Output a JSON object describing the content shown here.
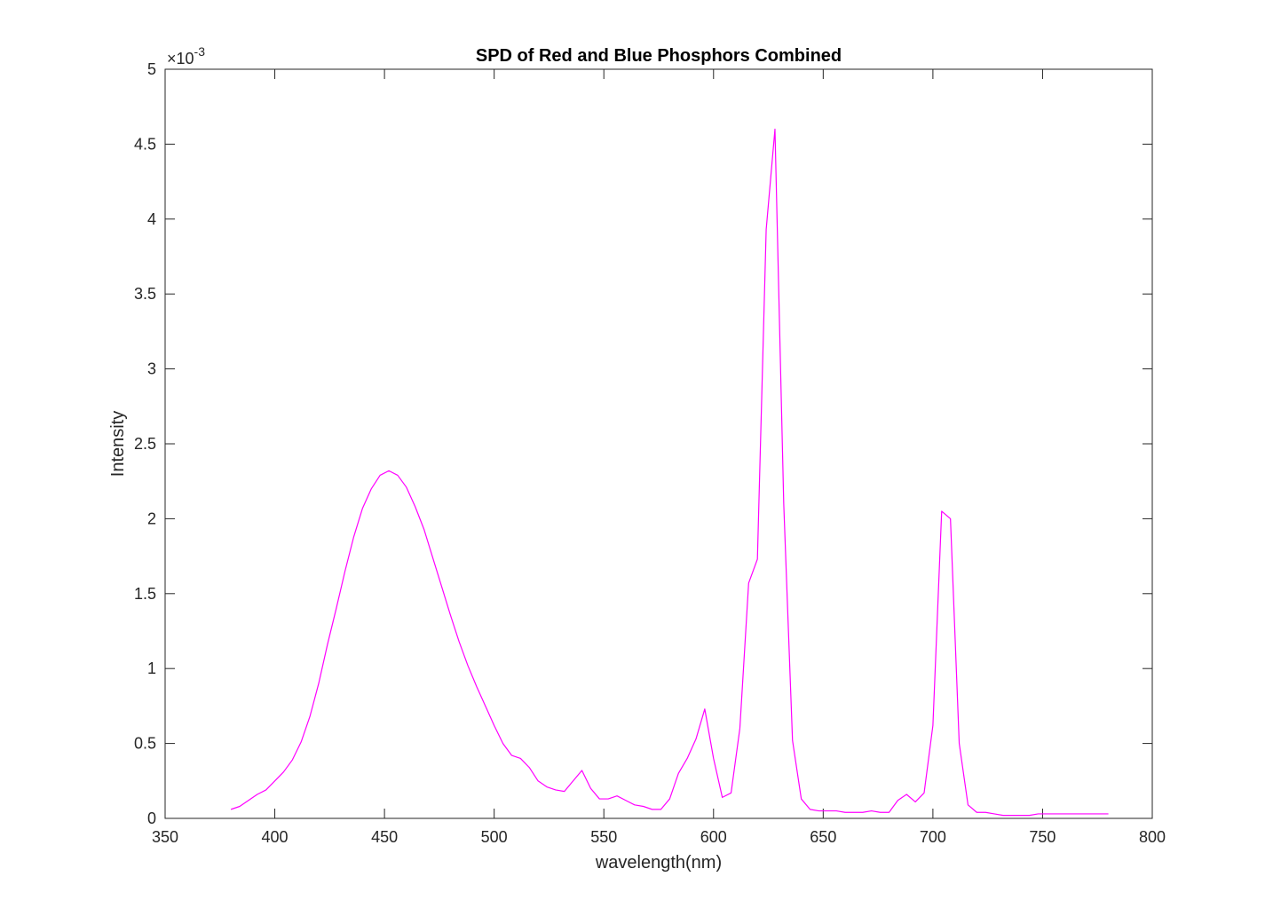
{
  "chart_data": {
    "type": "line",
    "title": "SPD of Red and Blue Phosphors Combined",
    "xlabel": "wavelength(nm)",
    "ylabel": "Intensity",
    "xlim": [
      350,
      800
    ],
    "ylim": [
      0,
      0.005
    ],
    "xticks": [
      350,
      400,
      450,
      500,
      550,
      600,
      650,
      700,
      750,
      800
    ],
    "xtick_labels": [
      "350",
      "400",
      "450",
      "500",
      "550",
      "600",
      "650",
      "700",
      "750",
      "800"
    ],
    "yticks": [
      0,
      0.0005,
      0.001,
      0.0015,
      0.002,
      0.0025,
      0.003,
      0.0035,
      0.004,
      0.0045,
      0.005
    ],
    "ytick_labels": [
      "0",
      "0.5",
      "1",
      "1.5",
      "2",
      "2.5",
      "3",
      "3.5",
      "4",
      "4.5",
      "5"
    ],
    "y_exponent_label": {
      "base": "×10",
      "exponent": "-3"
    },
    "grid": false,
    "legend": null,
    "series": [
      {
        "color": "#ff00ff",
        "x": [
          380,
          384,
          388,
          392,
          396,
          400,
          404,
          408,
          412,
          416,
          420,
          424,
          428,
          432,
          436,
          440,
          444,
          448,
          452,
          456,
          460,
          464,
          468,
          472,
          476,
          480,
          484,
          488,
          492,
          496,
          500,
          504,
          508,
          512,
          516,
          520,
          524,
          528,
          532,
          536,
          540,
          544,
          548,
          552,
          556,
          560,
          564,
          568,
          572,
          576,
          580,
          584,
          588,
          592,
          596,
          600,
          604,
          608,
          612,
          616,
          620,
          624,
          628,
          632,
          636,
          640,
          644,
          648,
          652,
          656,
          660,
          664,
          668,
          672,
          676,
          680,
          684,
          688,
          692,
          696,
          700,
          704,
          708,
          712,
          716,
          720,
          724,
          728,
          732,
          736,
          740,
          744,
          748,
          752,
          756,
          760,
          764,
          768,
          772,
          776,
          780
        ],
        "y": [
          6e-05,
          8e-05,
          0.00012,
          0.00016,
          0.00019,
          0.00025,
          0.00031,
          0.00039,
          0.00051,
          0.00068,
          0.0009,
          0.00116,
          0.0014,
          0.00165,
          0.00188,
          0.00207,
          0.0022,
          0.00229,
          0.00232,
          0.00229,
          0.00221,
          0.00208,
          0.00193,
          0.00174,
          0.00155,
          0.00136,
          0.00118,
          0.00102,
          0.00088,
          0.00075,
          0.00062,
          0.0005,
          0.00042,
          0.0004,
          0.00034,
          0.00025,
          0.00021,
          0.00019,
          0.00018,
          0.00025,
          0.00032,
          0.0002,
          0.00013,
          0.00013,
          0.00015,
          0.00012,
          9e-05,
          8e-05,
          6e-05,
          6e-05,
          0.00013,
          0.0003,
          0.0004,
          0.00053,
          0.00073,
          0.0004,
          0.00014,
          0.00017,
          0.0006,
          0.00157,
          0.00173,
          0.00393,
          0.0046,
          0.0021,
          0.00052,
          0.00013,
          6e-05,
          5e-05,
          5e-05,
          5e-05,
          4e-05,
          4e-05,
          4e-05,
          5e-05,
          4e-05,
          4e-05,
          0.00012,
          0.00016,
          0.00011,
          0.00017,
          0.00062,
          0.00205,
          0.002,
          0.0005,
          9e-05,
          4e-05,
          4e-05,
          3e-05,
          2e-05,
          2e-05,
          2e-05,
          2e-05,
          3e-05,
          3e-05,
          3e-05,
          3e-05,
          3e-05,
          3e-05,
          3e-05,
          3e-05,
          3e-05
        ]
      }
    ]
  }
}
